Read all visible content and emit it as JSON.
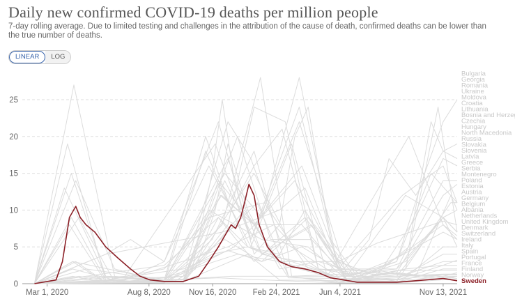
{
  "title": "Daily new confirmed COVID-19 deaths per million people",
  "subtitle": "7-day rolling average. Due to limited testing and challenges in the attribution of the cause of death, confirmed deaths can be lower than the true number of deaths.",
  "scale_toggle": {
    "linear": "LINEAR",
    "log": "LOG",
    "selected": "LINEAR"
  },
  "colors": {
    "highlight": "#8b1f26",
    "background_series": "#dcdcdc",
    "grid": "#dddddd",
    "accent": "#3360a9"
  },
  "chart_data": {
    "type": "line",
    "title": "Daily new confirmed COVID-19 deaths per million people",
    "xlabel": "",
    "ylabel": "",
    "ylim": [
      0,
      25
    ],
    "y_ticks": [
      "0",
      "5",
      "10",
      "15",
      "20",
      "25"
    ],
    "x_ticks": [
      "Mar 1, 2020",
      "Aug 8, 2020",
      "Nov 16, 2020",
      "Feb 24, 2021",
      "Jun 4, 2021",
      "Nov 13, 2021"
    ],
    "grid": true,
    "highlighted_series": "Sweden",
    "series": [
      {
        "name": "Sweden",
        "x": [
          "2020-02-10",
          "2020-03-15",
          "2020-03-25",
          "2020-04-05",
          "2020-04-15",
          "2020-04-22",
          "2020-05-01",
          "2020-05-15",
          "2020-06-01",
          "2020-06-20",
          "2020-07-10",
          "2020-07-25",
          "2020-08-10",
          "2020-09-01",
          "2020-10-01",
          "2020-10-25",
          "2020-11-10",
          "2020-11-25",
          "2020-12-05",
          "2020-12-15",
          "2020-12-22",
          "2020-12-30",
          "2021-01-05",
          "2021-01-12",
          "2021-01-20",
          "2021-01-28",
          "2021-02-10",
          "2021-03-01",
          "2021-03-20",
          "2021-04-10",
          "2021-05-01",
          "2021-05-20",
          "2021-06-10",
          "2021-07-01",
          "2021-08-01",
          "2021-09-01",
          "2021-10-01",
          "2021-11-13",
          "2021-12-05"
        ],
        "y": [
          0,
          0.5,
          3,
          9,
          10.5,
          9,
          8,
          7,
          5,
          3.5,
          2,
          1,
          0.5,
          0.3,
          0.3,
          1,
          3,
          5,
          6.5,
          8,
          7.5,
          9,
          11,
          13.5,
          12,
          8,
          5,
          3,
          2.3,
          2,
          1.5,
          0.8,
          0.5,
          0.2,
          0.2,
          0.2,
          0.4,
          0.7,
          0.4
        ]
      },
      {
        "name": "Bulgaria",
        "x": [
          "2020-02-10",
          "2020-09-01",
          "2020-10-15",
          "2020-11-15",
          "2020-12-01",
          "2020-12-20",
          "2021-01-20",
          "2021-03-01",
          "2021-03-25",
          "2021-04-15",
          "2021-05-20",
          "2021-07-01",
          "2021-09-01",
          "2021-10-15",
          "2021-11-13",
          "2021-12-05"
        ],
        "y": [
          0,
          0.3,
          2,
          15,
          25,
          14,
          4,
          8,
          20,
          24,
          6,
          1,
          3,
          15,
          22,
          25
        ]
      },
      {
        "name": "Georgia",
        "x": [
          "2020-02-10",
          "2020-09-15",
          "2020-10-20",
          "2020-11-20",
          "2020-12-10",
          "2021-01-10",
          "2021-03-01",
          "2021-05-01",
          "2021-06-10",
          "2021-07-20",
          "2021-08-20",
          "2021-10-01",
          "2021-11-13",
          "2021-12-05"
        ],
        "y": [
          0,
          0.2,
          2,
          10,
          19,
          10,
          2,
          3,
          2,
          6,
          17,
          12,
          18,
          19
        ]
      },
      {
        "name": "Romania",
        "x": [
          "2020-02-10",
          "2020-05-01",
          "2020-09-01",
          "2020-11-25",
          "2021-01-10",
          "2021-03-01",
          "2021-04-10",
          "2021-05-20",
          "2021-07-20",
          "2021-09-20",
          "2021-10-25",
          "2021-11-13",
          "2021-12-05"
        ],
        "y": [
          0,
          1,
          2.5,
          9,
          5,
          4,
          10,
          4,
          0.5,
          5,
          22,
          18,
          17
        ]
      },
      {
        "name": "Ukraine",
        "x": [
          "2020-02-10",
          "2020-06-01",
          "2020-10-01",
          "2020-12-10",
          "2021-02-01",
          "2021-04-15",
          "2021-06-01",
          "2021-08-01",
          "2021-10-01",
          "2021-11-13",
          "2021-12-05"
        ],
        "y": [
          0,
          0.5,
          2,
          4.5,
          3,
          9,
          3,
          1,
          9,
          17,
          16
        ]
      },
      {
        "name": "Moldova",
        "x": [
          "2020-02-10",
          "2020-06-01",
          "2020-10-01",
          "2020-12-01",
          "2021-03-01",
          "2021-04-10",
          "2021-06-01",
          "2021-09-01",
          "2021-11-13",
          "2021-12-05"
        ],
        "y": [
          0,
          4,
          6,
          7,
          10,
          13,
          2,
          2,
          14,
          14
        ]
      },
      {
        "name": "Croatia",
        "x": [
          "2020-02-10",
          "2020-09-01",
          "2020-12-10",
          "2021-02-01",
          "2021-04-20",
          "2021-06-15",
          "2021-09-01",
          "2021-11-13",
          "2021-12-05"
        ],
        "y": [
          0,
          0.3,
          17,
          4,
          8,
          0.5,
          1.5,
          12,
          13.5
        ]
      },
      {
        "name": "Lithuania",
        "x": [
          "2020-02-10",
          "2020-10-01",
          "2020-12-25",
          "2021-02-15",
          "2021-04-20",
          "2021-06-15",
          "2021-09-01",
          "2021-10-25",
          "2021-12-05"
        ],
        "y": [
          0,
          0.5,
          20,
          6,
          6,
          1,
          3,
          15,
          11
        ]
      },
      {
        "name": "Bosnia and Herzegovina",
        "x": [
          "2020-02-10",
          "2020-07-01",
          "2020-11-20",
          "2021-01-15",
          "2021-04-01",
          "2021-06-01",
          "2021-09-10",
          "2021-11-13",
          "2021-12-05"
        ],
        "y": [
          0,
          1,
          19,
          6,
          24,
          2,
          12,
          16,
          11
        ]
      },
      {
        "name": "Hungary",
        "x": [
          "2020-02-10",
          "2020-05-01",
          "2020-09-01",
          "2020-12-05",
          "2021-02-01",
          "2021-04-01",
          "2021-06-01",
          "2021-10-01",
          "2021-11-25",
          "2021-12-05"
        ],
        "y": [
          0,
          1,
          0.5,
          15,
          9,
          28,
          2,
          1,
          12,
          10
        ]
      },
      {
        "name": "Russia",
        "x": [
          "2020-02-10",
          "2020-06-01",
          "2020-09-01",
          "2020-12-25",
          "2021-03-01",
          "2021-06-01",
          "2021-08-01",
          "2021-11-13",
          "2021-12-05"
        ],
        "y": [
          0,
          1,
          0.8,
          4,
          3,
          3,
          5.5,
          8.5,
          8
        ]
      },
      {
        "name": "Slovakia",
        "x": [
          "2020-02-10",
          "2020-10-01",
          "2020-12-10",
          "2021-01-20",
          "2021-03-10",
          "2021-05-01",
          "2021-09-01",
          "2021-11-13",
          "2021-12-05"
        ],
        "y": [
          0,
          0.3,
          8,
          24,
          22,
          2,
          1,
          9,
          7
        ]
      },
      {
        "name": "Slovenia",
        "x": [
          "2020-02-10",
          "2020-10-01",
          "2020-12-10",
          "2021-01-15",
          "2021-03-01",
          "2021-06-01",
          "2021-09-01",
          "2021-11-13",
          "2021-12-05"
        ],
        "y": [
          0,
          1,
          22,
          17,
          6,
          1,
          2,
          9,
          7
        ]
      },
      {
        "name": "Greece",
        "x": [
          "2020-02-10",
          "2020-10-01",
          "2020-11-25",
          "2021-01-20",
          "2021-04-10",
          "2021-06-20",
          "2021-09-01",
          "2021-11-13",
          "2021-12-05"
        ],
        "y": [
          0,
          0.3,
          9,
          3,
          9,
          1,
          3.5,
          8,
          6.5
        ]
      },
      {
        "name": "Poland",
        "x": [
          "2020-02-10",
          "2020-10-01",
          "2020-11-25",
          "2021-01-20",
          "2021-04-05",
          "2021-06-10",
          "2021-09-10",
          "2021-11-13",
          "2021-12-05"
        ],
        "y": [
          0,
          0.5,
          14,
          8,
          16,
          1,
          0.5,
          5,
          5
        ]
      },
      {
        "name": "Austria",
        "x": [
          "2020-02-10",
          "2020-04-10",
          "2020-07-01",
          "2020-10-01",
          "2020-12-05",
          "2021-02-01",
          "2021-04-01",
          "2021-06-15",
          "2021-09-01",
          "2021-11-13",
          "2021-12-05"
        ],
        "y": [
          0,
          2,
          0.1,
          0.5,
          14,
          4,
          3,
          0.3,
          0.6,
          4,
          4
        ]
      },
      {
        "name": "United Kingdom",
        "x": [
          "2020-02-10",
          "2020-04-15",
          "2020-06-15",
          "2020-09-01",
          "2020-11-15",
          "2021-01-20",
          "2021-03-15",
          "2021-06-01",
          "2021-09-01",
          "2021-11-13",
          "2021-12-05"
        ],
        "y": [
          0,
          14,
          2,
          0.2,
          6,
          18,
          1,
          0.1,
          1.8,
          1.8,
          1.8
        ]
      },
      {
        "name": "Belgium",
        "x": [
          "2020-02-10",
          "2020-04-12",
          "2020-06-15",
          "2020-09-01",
          "2020-11-05",
          "2021-01-10",
          "2021-03-20",
          "2021-06-15",
          "2021-09-01",
          "2021-11-13",
          "2021-12-05"
        ],
        "y": [
          0,
          27,
          1,
          0.2,
          18,
          5,
          3,
          0.4,
          0.8,
          3,
          3
        ]
      },
      {
        "name": "Netherlands",
        "x": [
          "2020-02-10",
          "2020-04-08",
          "2020-06-01",
          "2020-09-01",
          "2020-11-15",
          "2021-01-10",
          "2021-04-01",
          "2021-06-15",
          "2021-09-01",
          "2021-11-13",
          "2021-12-05"
        ],
        "y": [
          0,
          9,
          0.5,
          0.2,
          4,
          5,
          2,
          0.3,
          0.2,
          2,
          2
        ]
      },
      {
        "name": "Italy",
        "x": [
          "2020-02-10",
          "2020-03-28",
          "2020-06-01",
          "2020-09-01",
          "2020-11-30",
          "2021-01-20",
          "2021-04-05",
          "2021-06-15",
          "2021-09-01",
          "2021-11-13",
          "2021-12-05"
        ],
        "y": [
          0,
          13,
          1,
          0.2,
          12,
          8,
          8,
          0.5,
          1,
          1.2,
          1.2
        ]
      },
      {
        "name": "Switzerland",
        "x": [
          "2020-02-10",
          "2020-04-05",
          "2020-06-01",
          "2020-10-01",
          "2020-11-28",
          "2021-01-20",
          "2021-03-15",
          "2021-09-01",
          "2021-11-13",
          "2021-12-05"
        ],
        "y": [
          0,
          8,
          0.2,
          0.3,
          12,
          8,
          0.8,
          0.6,
          1.2,
          1.3
        ]
      },
      {
        "name": "Spain",
        "x": [
          "2020-02-10",
          "2020-04-02",
          "2020-06-01",
          "2020-09-01",
          "2020-11-10",
          "2021-02-05",
          "2021-04-15",
          "2021-08-01",
          "2021-11-13",
          "2021-12-05"
        ],
        "y": [
          0,
          19,
          0.5,
          2,
          9,
          11,
          2,
          1.8,
          0.5,
          1
        ]
      },
      {
        "name": "Portugal",
        "x": [
          "2020-02-10",
          "2020-04-10",
          "2020-09-01",
          "2020-12-01",
          "2021-01-30",
          "2021-03-20",
          "2021-07-25",
          "2021-11-13",
          "2021-12-05"
        ],
        "y": [
          0,
          3,
          0.4,
          8,
          28,
          1,
          1.5,
          1,
          1
        ]
      },
      {
        "name": "Czechia",
        "x": [
          "2020-02-10",
          "2020-09-01",
          "2020-11-05",
          "2020-12-15",
          "2021-01-20",
          "2021-03-05",
          "2021-05-01",
          "2021-09-01",
          "2021-11-25",
          "2021-12-05"
        ],
        "y": [
          0,
          0.5,
          20,
          10,
          16,
          21,
          2,
          0.3,
          11,
          11
        ]
      },
      {
        "name": "Ireland",
        "x": [
          "2020-02-10",
          "2020-04-20",
          "2020-06-15",
          "2020-10-01",
          "2021-01-25",
          "2021-03-15",
          "2021-09-01",
          "2021-11-13",
          "2021-12-05"
        ],
        "y": [
          0,
          9,
          0.2,
          1,
          11,
          1,
          1,
          1.3,
          1.3
        ]
      },
      {
        "name": "France",
        "x": [
          "2020-02-10",
          "2020-04-08",
          "2020-06-01",
          "2020-09-01",
          "2020-11-10",
          "2021-02-01",
          "2021-04-15",
          "2021-06-15",
          "2021-09-01",
          "2021-11-13",
          "2021-12-05"
        ],
        "y": [
          0,
          15,
          1,
          0.5,
          10,
          6,
          5,
          0.5,
          1.5,
          0.8,
          1
        ]
      },
      {
        "name": "Germany",
        "x": [
          "2020-02-10",
          "2020-04-15",
          "2020-06-01",
          "2020-10-01",
          "2021-01-05",
          "2021-03-01",
          "2021-06-15",
          "2021-09-01",
          "2021-11-13",
          "2021-12-05"
        ],
        "y": [
          0,
          3,
          0.2,
          0.2,
          10,
          3,
          0.5,
          0.5,
          2.5,
          3.2
        ]
      },
      {
        "name": "Serbia",
        "x": [
          "2020-02-10",
          "2020-05-01",
          "2020-09-01",
          "2020-12-05",
          "2021-02-01",
          "2021-04-05",
          "2021-07-01",
          "2021-11-13",
          "2021-12-05"
        ],
        "y": [
          0,
          2,
          0.5,
          6,
          3,
          5,
          0.5,
          7,
          6
        ]
      },
      {
        "name": "Latvia",
        "x": [
          "2020-02-10",
          "2020-10-01",
          "2021-01-20",
          "2021-03-15",
          "2021-04-25",
          "2021-07-01",
          "2021-09-15",
          "2021-11-05",
          "2021-12-05"
        ],
        "y": [
          0,
          0.2,
          15,
          6,
          8,
          0.5,
          2,
          24,
          7
        ]
      },
      {
        "name": "Estonia",
        "x": [
          "2020-02-10",
          "2020-09-01",
          "2020-12-20",
          "2021-03-25",
          "2021-06-15",
          "2021-09-15",
          "2021-11-13",
          "2021-12-05"
        ],
        "y": [
          0,
          0.1,
          5,
          14,
          0.5,
          3,
          9,
          5
        ]
      },
      {
        "name": "Montenegro",
        "x": [
          "2020-02-10",
          "2020-07-01",
          "2020-09-01",
          "2020-11-10",
          "2021-01-15",
          "2021-03-20",
          "2021-05-15",
          "2021-09-20",
          "2021-11-13",
          "2021-12-05"
        ],
        "y": [
          0,
          0.5,
          3,
          16,
          5,
          19,
          1,
          20,
          8,
          6
        ]
      },
      {
        "name": "North Macedonia",
        "x": [
          "2020-02-10",
          "2020-06-01",
          "2020-07-10",
          "2020-09-01",
          "2020-11-25",
          "2021-01-15",
          "2021-04-01",
          "2021-06-15",
          "2021-09-15",
          "2021-11-13",
          "2021-12-05"
        ],
        "y": [
          0,
          4,
          6,
          3,
          22,
          6,
          22,
          1,
          12,
          9,
          10
        ]
      },
      {
        "name": "Albania",
        "x": [
          "2020-02-10",
          "2020-07-01",
          "2020-12-10",
          "2021-02-20",
          "2021-04-15",
          "2021-06-01",
          "2021-09-15",
          "2021-11-13",
          "2021-12-05"
        ],
        "y": [
          0,
          0.5,
          5,
          8,
          3,
          0.2,
          2,
          2.5,
          2.5
        ]
      },
      {
        "name": "Denmark",
        "x": [
          "2020-02-10",
          "2020-04-10",
          "2020-06-01",
          "2020-10-01",
          "2021-01-10",
          "2021-03-01",
          "2021-09-01",
          "2021-11-13",
          "2021-12-05"
        ],
        "y": [
          0,
          3,
          0.1,
          0.3,
          4,
          0.5,
          0.3,
          1,
          1.5
        ]
      },
      {
        "name": "Finland",
        "x": [
          "2020-02-10",
          "2020-04-20",
          "2020-06-15",
          "2020-12-15",
          "2021-03-15",
          "2021-06-15",
          "2021-09-15",
          "2021-11-25",
          "2021-12-05"
        ],
        "y": [
          0,
          1,
          0.1,
          1,
          1,
          0.1,
          0.3,
          0.8,
          0.7
        ]
      },
      {
        "name": "Norway",
        "x": [
          "2020-02-10",
          "2020-04-10",
          "2020-06-01",
          "2020-11-25",
          "2021-01-10",
          "2021-06-01",
          "2021-09-01",
          "2021-11-25",
          "2021-12-05"
        ],
        "y": [
          0,
          1,
          0.1,
          0.8,
          0.6,
          0.1,
          0.1,
          0.6,
          0.5
        ]
      }
    ]
  }
}
